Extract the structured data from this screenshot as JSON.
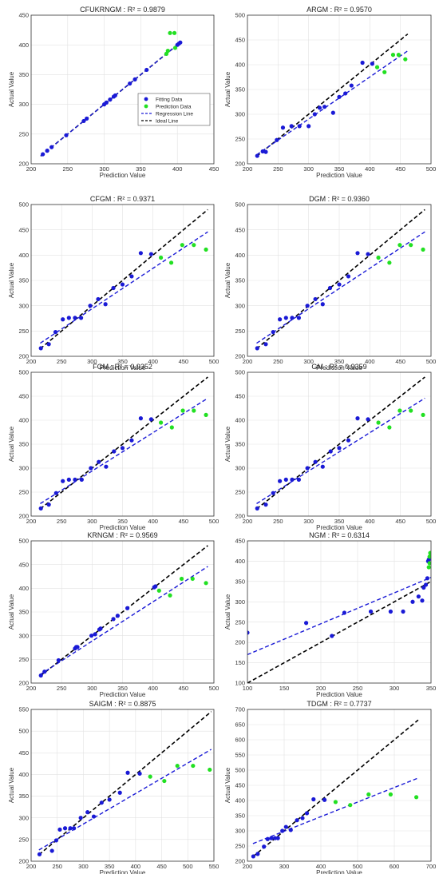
{
  "legend_labels": [
    "Fitting Data",
    "Prediction Data",
    "Regression Line",
    "Ideal Line"
  ],
  "colors": {
    "fitting": "#1a1ad6",
    "prediction": "#22e022",
    "regression": "#1a1ad6",
    "ideal": "#000000"
  },
  "chart_data": [
    {
      "type": "scatter",
      "title": "CFUKRNGM : R² = 0.9879",
      "xlabel": "Prediction Value",
      "ylabel": "Actual Value",
      "xlim": [
        200,
        450
      ],
      "ylim": [
        200,
        450
      ],
      "xticks": [
        200,
        250,
        300,
        350,
        400,
        450
      ],
      "yticks": [
        200,
        250,
        300,
        350,
        400,
        450
      ],
      "grid": true,
      "legend": "center-right",
      "fitting": [
        [
          216,
          216
        ],
        [
          222,
          222
        ],
        [
          228,
          228
        ],
        [
          248,
          248
        ],
        [
          272,
          272
        ],
        [
          276,
          276
        ],
        [
          300,
          300
        ],
        [
          303,
          303
        ],
        [
          308,
          308
        ],
        [
          313,
          313
        ],
        [
          315,
          315
        ],
        [
          335,
          335
        ],
        [
          342,
          342
        ],
        [
          358,
          358
        ],
        [
          400,
          400
        ],
        [
          402,
          402
        ],
        [
          404,
          404
        ]
      ],
      "prediction": [
        [
          385,
          385
        ],
        [
          387,
          390
        ],
        [
          390,
          420
        ],
        [
          396,
          420
        ],
        [
          397,
          395
        ]
      ],
      "regression": [
        [
          213,
          213
        ],
        [
          405,
          405
        ]
      ],
      "ideal": [
        [
          213,
          213
        ],
        [
          405,
          405
        ]
      ]
    },
    {
      "type": "scatter",
      "title": "ARGM : R² = 0.9570",
      "xlabel": "Prediction Value",
      "ylabel": "Actual Value",
      "xlim": [
        200,
        500
      ],
      "ylim": [
        200,
        500
      ],
      "xticks": [
        200,
        250,
        300,
        350,
        400,
        450,
        500
      ],
      "yticks": [
        200,
        250,
        300,
        350,
        400,
        450,
        500
      ],
      "grid": true,
      "fitting": [
        [
          216,
          216
        ],
        [
          225,
          225
        ],
        [
          230,
          224
        ],
        [
          248,
          248
        ],
        [
          258,
          273
        ],
        [
          272,
          276
        ],
        [
          285,
          276
        ],
        [
          300,
          276
        ],
        [
          310,
          300
        ],
        [
          318,
          313
        ],
        [
          326,
          315
        ],
        [
          340,
          303
        ],
        [
          350,
          335
        ],
        [
          360,
          342
        ],
        [
          370,
          358
        ],
        [
          388,
          404
        ],
        [
          404,
          402
        ]
      ],
      "prediction": [
        [
          412,
          395
        ],
        [
          424,
          385
        ],
        [
          438,
          420
        ],
        [
          447,
          420
        ],
        [
          458,
          411
        ]
      ],
      "regression": [
        [
          215,
          218
        ],
        [
          462,
          428
        ]
      ],
      "ideal": [
        [
          215,
          215
        ],
        [
          462,
          462
        ]
      ]
    },
    {
      "type": "scatter",
      "title": "CFGM : R² = 0.9371",
      "xlabel": "Prediction Value",
      "ylabel": "Actual Value",
      "xlim": [
        200,
        500
      ],
      "ylim": [
        200,
        500
      ],
      "xticks": [
        200,
        250,
        300,
        350,
        400,
        450,
        500
      ],
      "yticks": [
        200,
        250,
        300,
        350,
        400,
        450,
        500
      ],
      "grid": true,
      "fitting": [
        [
          216,
          216
        ],
        [
          229,
          224
        ],
        [
          240,
          248
        ],
        [
          252,
          273
        ],
        [
          262,
          276
        ],
        [
          272,
          276
        ],
        [
          282,
          276
        ],
        [
          297,
          300
        ],
        [
          310,
          313
        ],
        [
          322,
          303
        ],
        [
          335,
          335
        ],
        [
          350,
          342
        ],
        [
          365,
          358
        ],
        [
          380,
          404
        ],
        [
          397,
          402
        ]
      ],
      "prediction": [
        [
          413,
          395
        ],
        [
          430,
          385
        ],
        [
          448,
          420
        ],
        [
          467,
          420
        ],
        [
          487,
          411
        ]
      ],
      "regression": [
        [
          215,
          226
        ],
        [
          490,
          446
        ]
      ],
      "ideal": [
        [
          215,
          215
        ],
        [
          490,
          490
        ]
      ]
    },
    {
      "type": "scatter",
      "title": "DGM : R² = 0.9360",
      "xlabel": "Prediction Value",
      "ylabel": "Actual Value",
      "xlim": [
        200,
        500
      ],
      "ylim": [
        200,
        500
      ],
      "xticks": [
        200,
        250,
        300,
        350,
        400,
        450,
        500
      ],
      "yticks": [
        200,
        250,
        300,
        350,
        400,
        450,
        500
      ],
      "grid": true,
      "fitting": [
        [
          216,
          216
        ],
        [
          230,
          224
        ],
        [
          242,
          248
        ],
        [
          253,
          273
        ],
        [
          263,
          276
        ],
        [
          273,
          276
        ],
        [
          284,
          276
        ],
        [
          298,
          300
        ],
        [
          311,
          313
        ],
        [
          323,
          303
        ],
        [
          335,
          335
        ],
        [
          350,
          342
        ],
        [
          365,
          358
        ],
        [
          380,
          404
        ],
        [
          397,
          402
        ]
      ],
      "prediction": [
        [
          414,
          395
        ],
        [
          432,
          385
        ],
        [
          449,
          420
        ],
        [
          467,
          420
        ],
        [
          487,
          411
        ]
      ],
      "regression": [
        [
          215,
          226
        ],
        [
          490,
          446
        ]
      ],
      "ideal": [
        [
          215,
          215
        ],
        [
          490,
          490
        ]
      ]
    },
    {
      "type": "scatter",
      "title": "FGM : R² = 0.9352",
      "xlabel": "Prediction Value",
      "ylabel": "Actual Value",
      "xlim": [
        200,
        500
      ],
      "ylim": [
        200,
        500
      ],
      "xticks": [
        200,
        250,
        300,
        350,
        400,
        450,
        500
      ],
      "yticks": [
        200,
        250,
        300,
        350,
        400,
        450,
        500
      ],
      "grid": true,
      "fitting": [
        [
          216,
          216
        ],
        [
          229,
          224
        ],
        [
          241,
          248
        ],
        [
          252,
          273
        ],
        [
          262,
          276
        ],
        [
          272,
          276
        ],
        [
          283,
          276
        ],
        [
          298,
          300
        ],
        [
          311,
          313
        ],
        [
          323,
          303
        ],
        [
          336,
          335
        ],
        [
          350,
          342
        ],
        [
          365,
          358
        ],
        [
          380,
          404
        ],
        [
          397,
          402
        ]
      ],
      "prediction": [
        [
          413,
          395
        ],
        [
          431,
          385
        ],
        [
          449,
          420
        ],
        [
          467,
          420
        ],
        [
          487,
          411
        ]
      ],
      "regression": [
        [
          215,
          226
        ],
        [
          490,
          446
        ]
      ],
      "ideal": [
        [
          215,
          215
        ],
        [
          490,
          490
        ]
      ]
    },
    {
      "type": "scatter",
      "title": "GM : R² = 0.9359",
      "xlabel": "Prediction Value",
      "ylabel": "Actual Value",
      "xlim": [
        200,
        500
      ],
      "ylim": [
        200,
        500
      ],
      "xticks": [
        200,
        250,
        300,
        350,
        400,
        450,
        500
      ],
      "yticks": [
        200,
        250,
        300,
        350,
        400,
        450,
        500
      ],
      "grid": true,
      "fitting": [
        [
          216,
          216
        ],
        [
          230,
          224
        ],
        [
          242,
          248
        ],
        [
          253,
          273
        ],
        [
          263,
          276
        ],
        [
          273,
          276
        ],
        [
          284,
          276
        ],
        [
          298,
          300
        ],
        [
          311,
          313
        ],
        [
          323,
          303
        ],
        [
          336,
          335
        ],
        [
          350,
          342
        ],
        [
          365,
          358
        ],
        [
          380,
          404
        ],
        [
          397,
          402
        ]
      ],
      "prediction": [
        [
          414,
          395
        ],
        [
          432,
          385
        ],
        [
          449,
          420
        ],
        [
          467,
          420
        ],
        [
          487,
          411
        ]
      ],
      "regression": [
        [
          215,
          226
        ],
        [
          490,
          446
        ]
      ],
      "ideal": [
        [
          215,
          215
        ],
        [
          490,
          490
        ]
      ]
    },
    {
      "type": "scatter",
      "title": "KRNGM : R² = 0.9569",
      "xlabel": "Prediction Value",
      "ylabel": "Actual Value",
      "xlim": [
        200,
        500
      ],
      "ylim": [
        200,
        500
      ],
      "xticks": [
        200,
        250,
        300,
        350,
        400,
        450,
        500
      ],
      "yticks": [
        200,
        250,
        300,
        350,
        400,
        450,
        500
      ],
      "grid": true,
      "fitting": [
        [
          216,
          216
        ],
        [
          222,
          224
        ],
        [
          245,
          248
        ],
        [
          272,
          273
        ],
        [
          274,
          276
        ],
        [
          276,
          276
        ],
        [
          299,
          300
        ],
        [
          305,
          303
        ],
        [
          312,
          313
        ],
        [
          314,
          315
        ],
        [
          335,
          335
        ],
        [
          342,
          342
        ],
        [
          358,
          358
        ],
        [
          402,
          402
        ],
        [
          404,
          404
        ]
      ],
      "prediction": [
        [
          410,
          395
        ],
        [
          428,
          385
        ],
        [
          447,
          420
        ],
        [
          465,
          420
        ],
        [
          487,
          411
        ]
      ],
      "regression": [
        [
          215,
          218
        ],
        [
          490,
          446
        ]
      ],
      "ideal": [
        [
          215,
          215
        ],
        [
          490,
          490
        ]
      ]
    },
    {
      "type": "scatter",
      "title": "NGM : R² = 0.6314",
      "xlabel": "Prediction Value",
      "ylabel": "Actual Value",
      "xlim": [
        100,
        350
      ],
      "ylim": [
        100,
        450
      ],
      "xticks": [
        100,
        150,
        200,
        250,
        300,
        350
      ],
      "yticks": [
        100,
        150,
        200,
        250,
        300,
        350,
        400,
        450
      ],
      "grid": true,
      "fitting": [
        [
          100,
          224
        ],
        [
          180,
          248
        ],
        [
          215,
          216
        ],
        [
          232,
          273
        ],
        [
          268,
          276
        ],
        [
          295,
          276
        ],
        [
          312,
          276
        ],
        [
          325,
          300
        ],
        [
          333,
          313
        ],
        [
          338,
          303
        ],
        [
          340,
          335
        ],
        [
          343,
          342
        ],
        [
          345,
          358
        ],
        [
          346,
          400
        ],
        [
          347,
          404
        ]
      ],
      "prediction": [
        [
          347,
          385
        ],
        [
          348,
          395
        ],
        [
          348,
          411
        ],
        [
          349,
          420
        ],
        [
          349,
          420
        ]
      ],
      "regression": [
        [
          100,
          170
        ],
        [
          350,
          360
        ]
      ],
      "ideal": [
        [
          100,
          100
        ],
        [
          350,
          350
        ]
      ]
    },
    {
      "type": "scatter",
      "title": "SAIGM : R² = 0.8875",
      "xlabel": "Prediction Value",
      "ylabel": "Actual Value",
      "xlim": [
        200,
        550
      ],
      "ylim": [
        200,
        550
      ],
      "xticks": [
        200,
        250,
        300,
        350,
        400,
        450,
        500,
        550
      ],
      "yticks": [
        200,
        250,
        300,
        350,
        400,
        450,
        500,
        550
      ],
      "grid": true,
      "fitting": [
        [
          216,
          216
        ],
        [
          240,
          224
        ],
        [
          248,
          248
        ],
        [
          255,
          273
        ],
        [
          265,
          276
        ],
        [
          275,
          276
        ],
        [
          282,
          276
        ],
        [
          295,
          300
        ],
        [
          308,
          313
        ],
        [
          320,
          303
        ],
        [
          335,
          335
        ],
        [
          350,
          342
        ],
        [
          370,
          358
        ],
        [
          385,
          404
        ],
        [
          408,
          402
        ]
      ],
      "prediction": [
        [
          428,
          395
        ],
        [
          455,
          385
        ],
        [
          480,
          420
        ],
        [
          510,
          420
        ],
        [
          542,
          411
        ]
      ],
      "regression": [
        [
          215,
          226
        ],
        [
          545,
          458
        ]
      ],
      "ideal": [
        [
          215,
          215
        ],
        [
          545,
          545
        ]
      ]
    },
    {
      "type": "scatter",
      "title": "TDGM : R² = 0.7737",
      "xlabel": "Prediction Value",
      "ylabel": "Actual Value",
      "xlim": [
        200,
        700
      ],
      "ylim": [
        200,
        700
      ],
      "xticks": [
        200,
        300,
        400,
        500,
        600,
        700
      ],
      "yticks": [
        200,
        250,
        300,
        350,
        400,
        450,
        500,
        550,
        600,
        650,
        700
      ],
      "grid": true,
      "fitting": [
        [
          216,
          216
        ],
        [
          228,
          224
        ],
        [
          245,
          248
        ],
        [
          255,
          273
        ],
        [
          265,
          276
        ],
        [
          275,
          276
        ],
        [
          283,
          276
        ],
        [
          295,
          300
        ],
        [
          305,
          313
        ],
        [
          318,
          303
        ],
        [
          335,
          335
        ],
        [
          350,
          342
        ],
        [
          362,
          358
        ],
        [
          380,
          404
        ],
        [
          410,
          402
        ]
      ],
      "prediction": [
        [
          440,
          395
        ],
        [
          480,
          385
        ],
        [
          530,
          420
        ],
        [
          590,
          420
        ],
        [
          660,
          411
        ]
      ],
      "regression": [
        [
          215,
          258
        ],
        [
          665,
          474
        ]
      ],
      "ideal": [
        [
          215,
          215
        ],
        [
          665,
          665
        ]
      ]
    }
  ]
}
